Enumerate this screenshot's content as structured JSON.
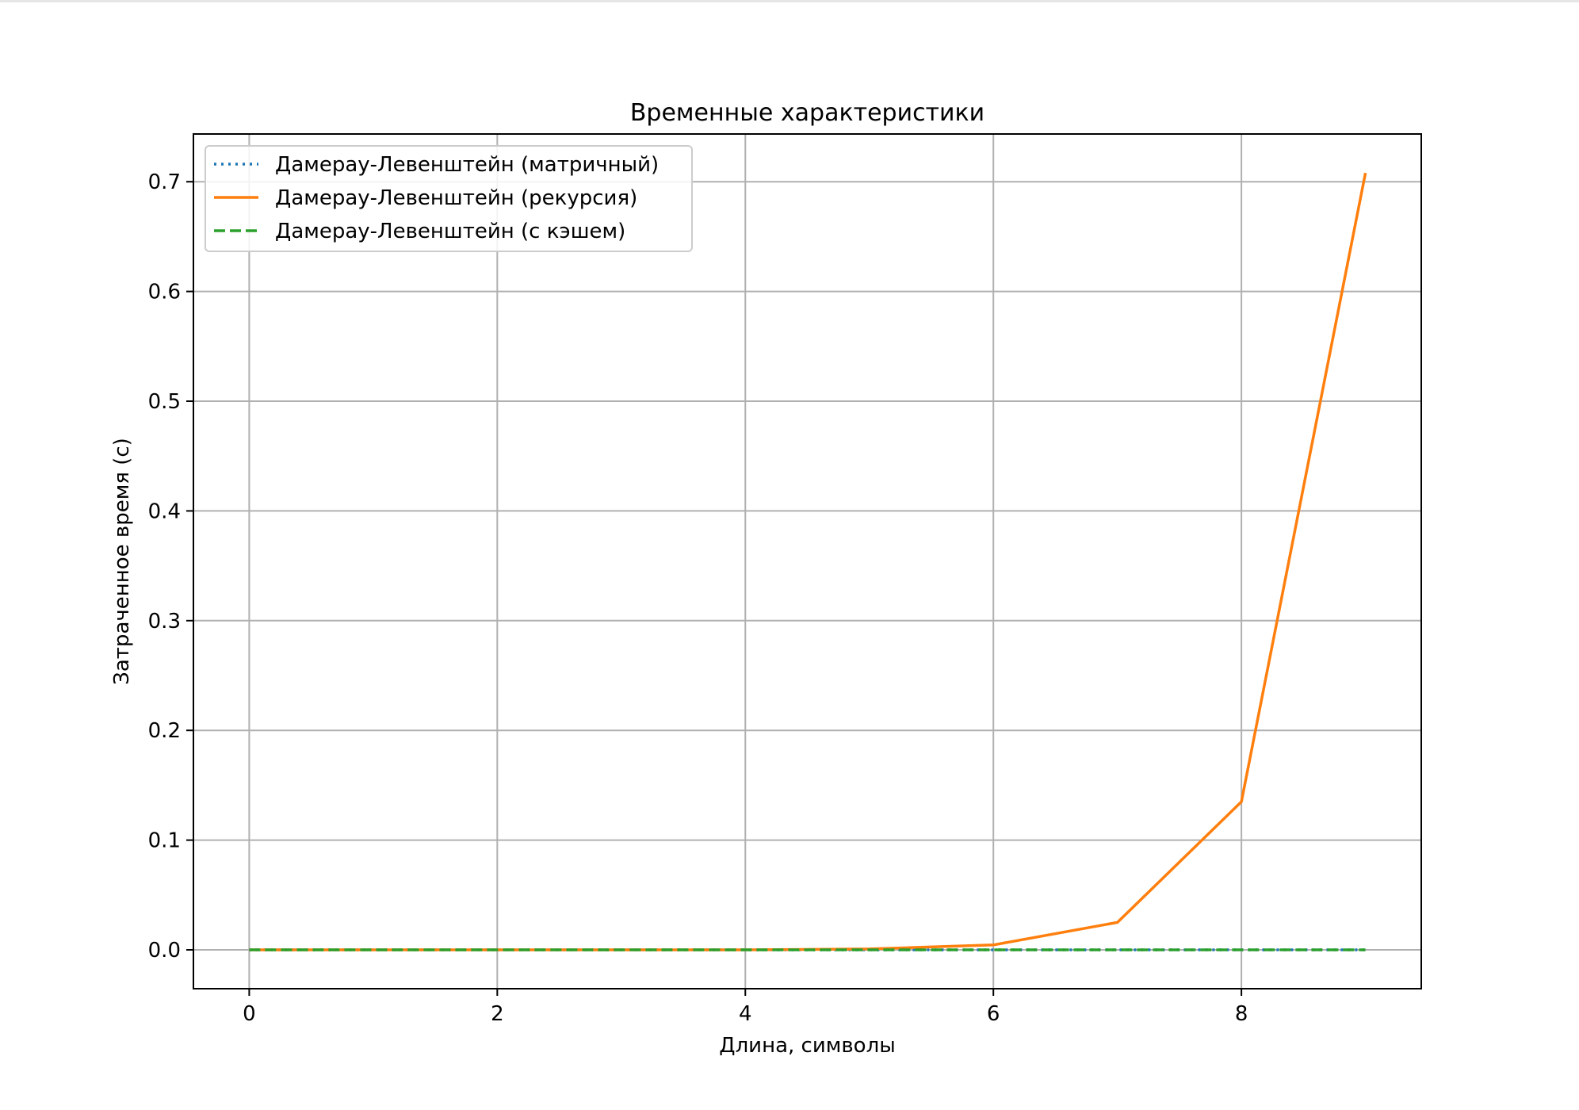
{
  "chart_data": {
    "type": "line",
    "title": "Временные характеристики",
    "xlabel": "Длина, символы",
    "ylabel": "Затраченное время (с)",
    "xlim": [
      -0.45,
      9.45
    ],
    "ylim": [
      -0.0354,
      0.7435
    ],
    "xticks": [
      0,
      2,
      4,
      6,
      8
    ],
    "xtick_labels": [
      "0",
      "2",
      "4",
      "6",
      "8"
    ],
    "yticks": [
      0.0,
      0.1,
      0.2,
      0.3,
      0.4,
      0.5,
      0.6,
      0.7
    ],
    "ytick_labels": [
      "0.0",
      "0.1",
      "0.2",
      "0.3",
      "0.4",
      "0.5",
      "0.6",
      "0.7"
    ],
    "grid": true,
    "legend_position": "upper-left",
    "x": [
      0,
      1,
      2,
      3,
      4,
      5,
      6,
      7,
      8,
      9
    ],
    "series": [
      {
        "name": "Дамерау-Левенштейн (матричный)",
        "color": "#1f77b4",
        "style": "dotted",
        "values": [
          0.0,
          0.0,
          0.0,
          0.0,
          0.0,
          0.0,
          0.0,
          0.0,
          0.0,
          0.0
        ]
      },
      {
        "name": "Дамерау-Левенштейн (рекурсия)",
        "color": "#ff7f0e",
        "style": "solid",
        "values": [
          0.0,
          0.0,
          0.0,
          0.0,
          0.0,
          0.0008,
          0.0045,
          0.025,
          0.135,
          0.708
        ]
      },
      {
        "name": "Дамерау-Левенштейн (с кэшем)",
        "color": "#2ca02c",
        "style": "dashed",
        "values": [
          0.0,
          0.0,
          0.0,
          0.0,
          0.0,
          0.0,
          0.0,
          0.0,
          0.0,
          0.0
        ]
      }
    ]
  }
}
